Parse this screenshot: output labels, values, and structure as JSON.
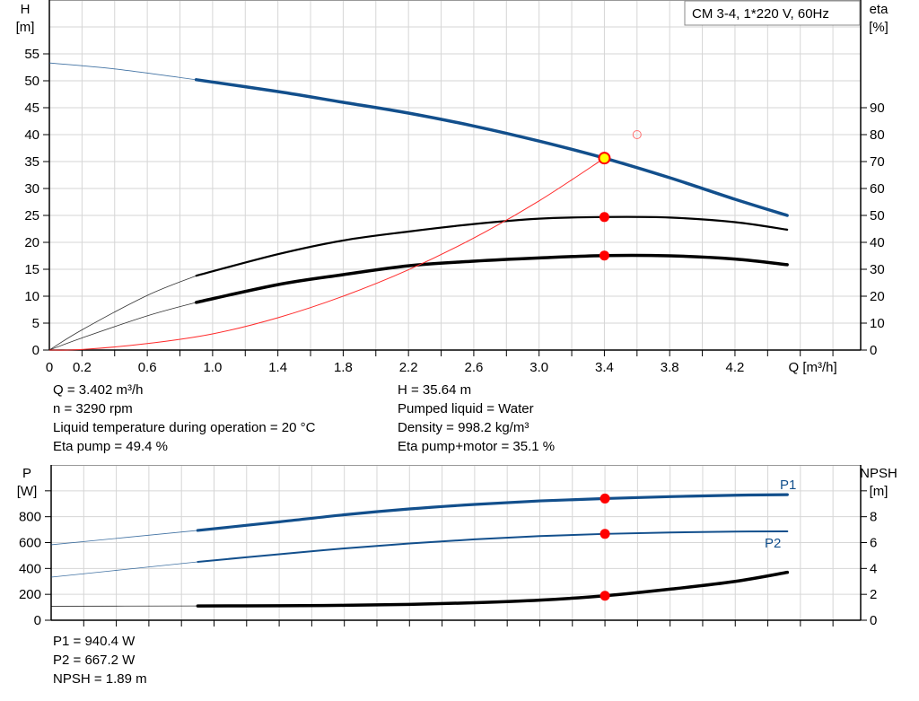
{
  "legend_box": "CM 3-4, 1*220 V, 60Hz",
  "info_top_left": [
    "Q = 3.402 m³/h",
    "n = 3290 rpm",
    "Liquid temperature during operation = 20 °C",
    "Eta pump = 49.4 %"
  ],
  "info_top_right": [
    "H = 35.64 m",
    "Pumped liquid = Water",
    "Density = 998.2 kg/m³",
    "Eta pump+motor = 35.1 %"
  ],
  "info_bottom": [
    "P1 = 940.4 W",
    "P2 = 667.2 W",
    "NPSH = 1.89 m"
  ],
  "colors": {
    "head": "#124f8c",
    "power": "#124f8c",
    "efficiency": "#000000",
    "system": "#ff2a2a",
    "point": "#ff0000",
    "duty_fill": "#ffff00",
    "grid": "#d6d6d6"
  },
  "chart_data": [
    {
      "type": "line",
      "ylabel_left": [
        "H",
        "[m]"
      ],
      "ylabel_right": [
        "eta",
        "[%]"
      ],
      "xlabel": "Q [m³/h]",
      "xlim": [
        0,
        4.97
      ],
      "ylim_left": [
        0,
        65
      ],
      "ylim_right": [
        0,
        130
      ],
      "x_ticks": [
        "0",
        "0.2",
        "0.6",
        "1.0",
        "1.4",
        "1.8",
        "2.2",
        "2.6",
        "3.0",
        "3.4",
        "3.8",
        "4.2"
      ],
      "y_ticks_left": [
        "0",
        "5",
        "10",
        "15",
        "20",
        "25",
        "30",
        "35",
        "40",
        "45",
        "50",
        "55"
      ],
      "y_ticks_right": [
        "0",
        "10",
        "20",
        "30",
        "40",
        "50",
        "60",
        "70",
        "80",
        "90"
      ],
      "grid": true,
      "operating_range": [
        0.9,
        4.52
      ],
      "series": [
        {
          "key": "head",
          "axis": "left",
          "x": [
            0,
            0.4,
            0.9,
            1.4,
            1.8,
            2.2,
            2.6,
            3.0,
            3.4,
            3.8,
            4.2,
            4.52
          ],
          "y": [
            53.3,
            52.2,
            50.2,
            48.0,
            46.0,
            44.0,
            41.6,
            38.8,
            35.64,
            32.0,
            28.0,
            25.0
          ],
          "width": 3.5
        },
        {
          "key": "eta_pump",
          "axis": "right",
          "x": [
            0,
            0.2,
            0.6,
            0.9,
            1.4,
            1.8,
            2.2,
            2.6,
            3.0,
            3.4,
            3.8,
            4.2,
            4.52
          ],
          "y": [
            0,
            7.5,
            20.3,
            27.6,
            35.6,
            40.7,
            44.0,
            46.8,
            48.8,
            49.4,
            49.2,
            47.5,
            44.7
          ],
          "width": 2.2
        },
        {
          "key": "eta_pump_motor",
          "axis": "right",
          "x": [
            0,
            0.2,
            0.6,
            0.9,
            1.4,
            1.8,
            2.2,
            2.6,
            3.0,
            3.4,
            3.8,
            4.2,
            4.52
          ],
          "y": [
            0,
            4.5,
            12.7,
            17.7,
            24.3,
            28.0,
            31.3,
            33.0,
            34.2,
            35.1,
            35.0,
            33.8,
            31.7
          ],
          "width": 3.5
        },
        {
          "key": "system",
          "axis": "left",
          "x": [
            0,
            0.2,
            0.6,
            1.0,
            1.4,
            1.8,
            2.2,
            2.6,
            3.0,
            3.4
          ],
          "y": [
            0,
            0.1,
            1.2,
            3.0,
            6.0,
            10.0,
            14.9,
            20.8,
            27.7,
            35.64
          ],
          "width": 1,
          "thin_only": true
        }
      ],
      "points": [
        {
          "x": 3.4,
          "y": 35.64,
          "axis": "left",
          "style": "duty"
        },
        {
          "x": 3.4,
          "y": 49.4,
          "axis": "right",
          "style": "dot"
        },
        {
          "x": 3.4,
          "y": 35.1,
          "axis": "right",
          "style": "dot"
        },
        {
          "x": 3.6,
          "y": 40.0,
          "axis": "left",
          "style": "hollow"
        }
      ]
    },
    {
      "type": "line",
      "ylabel_left": [
        "P",
        "[W]"
      ],
      "ylabel_right": [
        "NPSH",
        "[m]"
      ],
      "xlim": [
        0,
        4.97
      ],
      "ylim_left": [
        0,
        1200
      ],
      "ylim_right": [
        0,
        12
      ],
      "y_ticks_left": [
        "0",
        "200",
        "400",
        "600",
        "800",
        ""
      ],
      "y_ticks_right": [
        "0",
        "2",
        "4",
        "6",
        "8",
        ""
      ],
      "grid": true,
      "operating_range": [
        0.9,
        4.52
      ],
      "series": [
        {
          "key": "P1",
          "name": "P1",
          "axis": "left",
          "x": [
            0,
            0.9,
            1.4,
            1.8,
            2.2,
            2.6,
            3.0,
            3.4,
            3.8,
            4.2,
            4.52
          ],
          "y": [
            583,
            694,
            760,
            815,
            860,
            895,
            922,
            940.4,
            955,
            966,
            970
          ],
          "width": 3.2
        },
        {
          "key": "P2",
          "name": "P2",
          "axis": "left",
          "x": [
            0,
            0.9,
            1.4,
            1.8,
            2.2,
            2.6,
            3.0,
            3.4,
            3.8,
            4.2,
            4.52
          ],
          "y": [
            333,
            451,
            510,
            555,
            593,
            625,
            650,
            667.2,
            678,
            685,
            687
          ],
          "width": 2
        },
        {
          "key": "NPSH",
          "axis": "right",
          "x": [
            0,
            0.9,
            1.4,
            1.8,
            2.2,
            2.6,
            3.0,
            3.4,
            3.8,
            4.2,
            4.52
          ],
          "y": [
            1.08,
            1.1,
            1.12,
            1.15,
            1.22,
            1.35,
            1.55,
            1.89,
            2.4,
            3.0,
            3.7
          ],
          "width": 3.5
        }
      ],
      "points": [
        {
          "x": 3.4,
          "y": 940.4,
          "axis": "left",
          "style": "dot"
        },
        {
          "x": 3.4,
          "y": 667.2,
          "axis": "left",
          "style": "dot"
        },
        {
          "x": 3.4,
          "y": 1.89,
          "axis": "right",
          "style": "dot"
        }
      ]
    }
  ]
}
